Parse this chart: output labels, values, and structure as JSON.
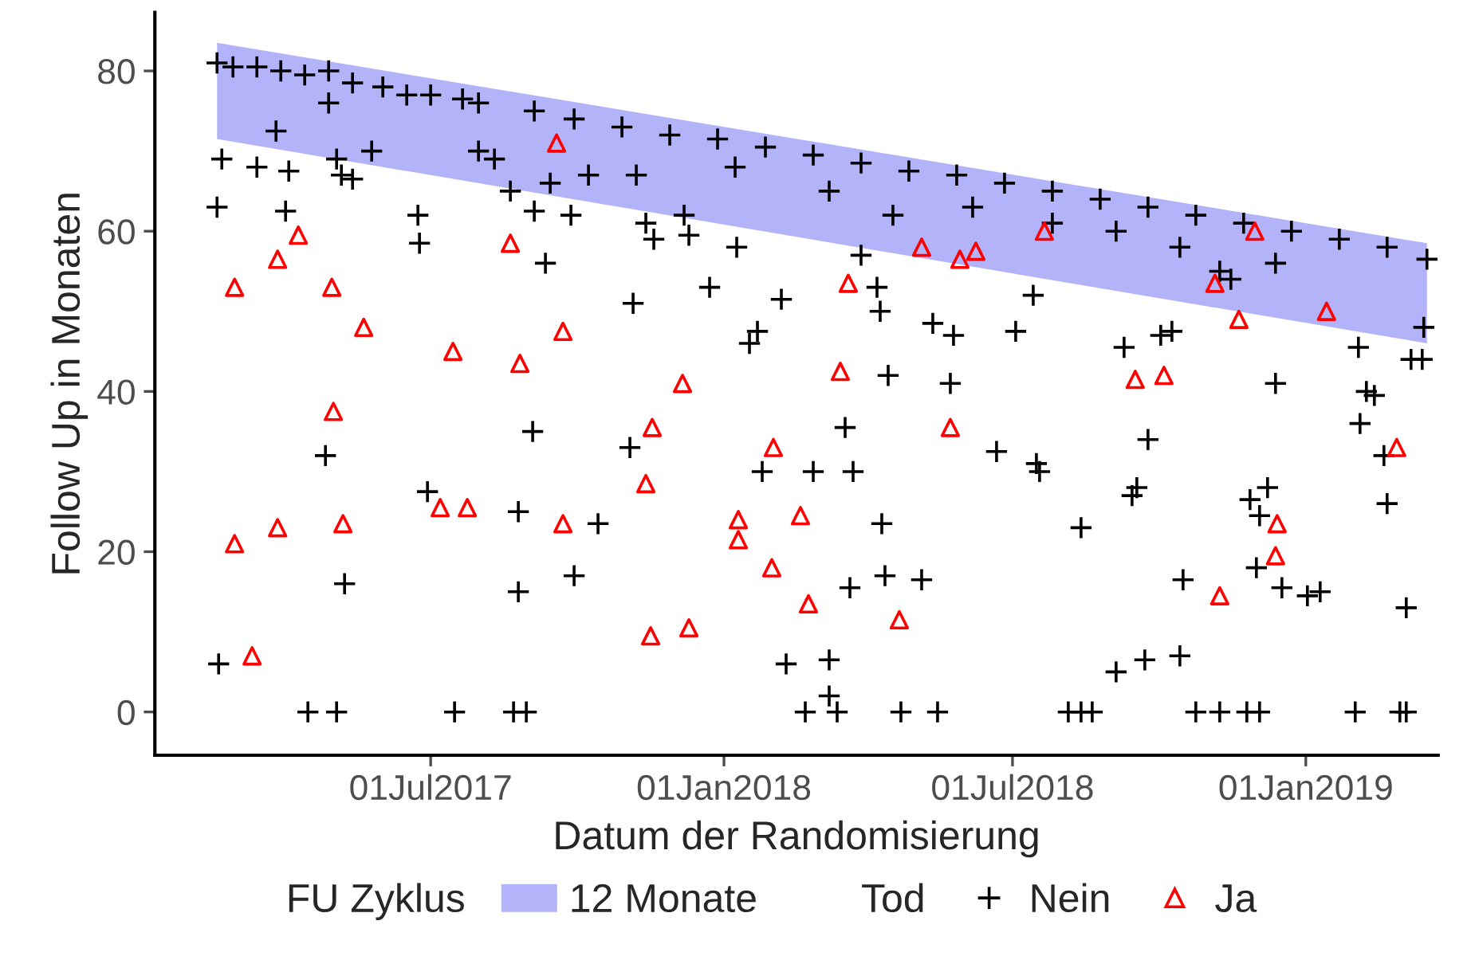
{
  "chart_data": {
    "type": "scatter",
    "xlabel": "Datum der Randomisierung",
    "ylabel": "Follow Up in Monaten",
    "legend_title": [
      "FU Zyklus",
      "Tod"
    ],
    "legend": "bottom",
    "grid": false,
    "xlim": [
      "2017-01-09",
      "2019-03-25"
    ],
    "ylim": [
      -5.4,
      87.3
    ],
    "xticks": [
      {
        "value": "2017-07-01",
        "label": "01Jul2017"
      },
      {
        "value": "2018-01-01",
        "label": "01Jan2018"
      },
      {
        "value": "2018-07-01",
        "label": "01Jul2018"
      },
      {
        "value": "2019-01-01",
        "label": "01Jan2019"
      }
    ],
    "yticks": [
      0,
      20,
      40,
      60,
      80
    ],
    "series": [
      {
        "type": "line",
        "name": "12 Monate",
        "color": "#b3b3fa",
        "x": [
          "2017-02-17",
          "2019-03-18"
        ],
        "values": [
          null,
          null
        ],
        "lower": [
          71.5,
          46
        ],
        "upper": [
          83.5,
          58.5
        ]
      },
      {
        "name": "Nein",
        "color": "#000000",
        "marker": "cross",
        "x": [
          "2017-02-17",
          "2017-02-27",
          "2017-03-14",
          "2017-03-29",
          "2017-04-13",
          "2017-04-28",
          "2017-05-13",
          "2017-06-01",
          "2017-06-16",
          "2017-07-01",
          "2017-07-21",
          "2017-07-31",
          "2017-09-04",
          "2017-09-29",
          "2017-10-29",
          "2017-11-28",
          "2017-12-28",
          "2018-01-27",
          "2018-02-26",
          "2018-03-28",
          "2018-04-27",
          "2018-05-27",
          "2018-06-26",
          "2018-07-26",
          "2018-08-25",
          "2018-09-24",
          "2018-10-24",
          "2018-11-23",
          "2018-12-23",
          "2019-01-22",
          "2019-02-21",
          "2019-03-18",
          "2017-02-20",
          "2017-02-17",
          "2017-02-18",
          "2017-03-14",
          "2017-03-26",
          "2017-04-03",
          "2017-04-01",
          "2017-04-28",
          "2017-05-03",
          "2017-05-06",
          "2017-05-13",
          "2017-04-26",
          "2017-05-08",
          "2017-04-15",
          "2017-05-03",
          "2017-05-25",
          "2017-06-23",
          "2017-06-24",
          "2017-06-29",
          "2017-07-16",
          "2017-08-22",
          "2017-08-30",
          "2017-08-25",
          "2017-08-25",
          "2017-09-04",
          "2017-09-03",
          "2017-09-11",
          "2017-09-14",
          "2017-09-29",
          "2017-10-14",
          "2017-09-27",
          "2017-11-03",
          "2017-11-05",
          "2017-11-13",
          "2017-11-18",
          "2017-12-10",
          "2017-12-23",
          "2018-01-09",
          "2018-01-17",
          "2018-01-22",
          "2018-01-25",
          "2018-02-06",
          "2018-02-09",
          "2018-02-21",
          "2018-02-26",
          "2018-03-08",
          "2018-03-13",
          "2018-03-08",
          "2018-03-18",
          "2018-03-23",
          "2018-03-21",
          "2018-03-28",
          "2018-04-07",
          "2018-04-09",
          "2018-04-10",
          "2018-04-12",
          "2018-04-14",
          "2018-04-22",
          "2018-05-05",
          "2018-05-12",
          "2018-05-15",
          "2018-05-23",
          "2018-05-25",
          "2018-06-21",
          "2018-07-03",
          "2018-07-14",
          "2018-07-16",
          "2018-07-18",
          "2018-08-05",
          "2018-08-13",
          "2018-08-20",
          "2018-08-13",
          "2018-09-04",
          "2018-09-09",
          "2018-09-14",
          "2018-09-17",
          "2018-09-22",
          "2018-09-24",
          "2018-10-02",
          "2018-10-09",
          "2018-10-14",
          "2018-10-24",
          "2018-11-08",
          "2018-10-16",
          "2018-11-08",
          "2018-11-15",
          "2018-11-27",
          "2018-12-03",
          "2018-12-01",
          "2018-12-08",
          "2018-12-13",
          "2018-12-17",
          "2019-01-02",
          "2019-01-10",
          "2018-11-25",
          "2018-12-03",
          "2019-02-01",
          "2019-03-01",
          "2019-03-05",
          "2019-02-04",
          "2019-02-08",
          "2019-02-03",
          "2019-02-13",
          "2019-02-19",
          "2019-02-21",
          "2019-03-05",
          "2019-03-08",
          "2019-03-15",
          "2019-03-16",
          "2017-07-31",
          "2017-08-10",
          "2017-08-20",
          "2017-10-08",
          "2017-11-07",
          "2017-12-07",
          "2018-01-08",
          "2018-03-08",
          "2018-04-17",
          "2018-06-06",
          "2018-07-26",
          "2018-09-04",
          "2018-10-14",
          "2018-12-13"
        ],
        "values": [
          81,
          80.5,
          80.5,
          80,
          79.5,
          80,
          78.5,
          78,
          77,
          77,
          76.5,
          76,
          75,
          74,
          73,
          72,
          71.5,
          70.5,
          69.5,
          68.5,
          67.5,
          67,
          66,
          65,
          64,
          63,
          62,
          61,
          60,
          59,
          58,
          56.5,
          69,
          63,
          6,
          68,
          72.5,
          67.5,
          62.5,
          76,
          69,
          67,
          66.5,
          32,
          16,
          0,
          0,
          70,
          62,
          58.5,
          27.5,
          0,
          0,
          0,
          25,
          15,
          62.5,
          35,
          56,
          66,
          17,
          23.5,
          62,
          33,
          51,
          61,
          59,
          59.5,
          53,
          58,
          46,
          47.5,
          30,
          51.5,
          6,
          0,
          30,
          2,
          0,
          6.5,
          35.5,
          30,
          15.5,
          57,
          53,
          50,
          23.5,
          17,
          42,
          0,
          16.5,
          48.5,
          0,
          41,
          47,
          32.5,
          47.5,
          52,
          31,
          30,
          0,
          0,
          0,
          23,
          5,
          45.5,
          27,
          28,
          6.5,
          34,
          47,
          47.5,
          7,
          0,
          0,
          16.5,
          55,
          54,
          26.5,
          24.5,
          18,
          28,
          41,
          15.5,
          14.5,
          15,
          0,
          0,
          0,
          0,
          0,
          36,
          40,
          45.5,
          39.5,
          32,
          26,
          13,
          44,
          44,
          48,
          70,
          69,
          65,
          67,
          67,
          62,
          68,
          65,
          62,
          63,
          61,
          60,
          58,
          56
        ]
      },
      {
        "name": "Ja",
        "color": "#ff0000",
        "marker": "triangle",
        "x": [
          "2017-02-28",
          "2017-02-28",
          "2017-03-11",
          "2017-03-27",
          "2017-03-27",
          "2017-04-09",
          "2017-04-30",
          "2017-05-01",
          "2017-05-07",
          "2017-05-20",
          "2017-07-07",
          "2017-07-15",
          "2017-07-24",
          "2017-08-20",
          "2017-08-26",
          "2017-09-18",
          "2017-09-22",
          "2017-09-22",
          "2017-11-13",
          "2017-11-17",
          "2017-11-16",
          "2017-12-06",
          "2017-12-10",
          "2018-01-10",
          "2018-01-10",
          "2018-02-01",
          "2018-01-31",
          "2018-02-18",
          "2018-02-23",
          "2018-03-15",
          "2018-03-20",
          "2018-04-21",
          "2018-05-05",
          "2018-05-23",
          "2018-05-29",
          "2018-06-08",
          "2018-07-21",
          "2018-09-16",
          "2018-10-04",
          "2018-11-05",
          "2018-11-08",
          "2018-11-20",
          "2018-11-30",
          "2018-12-14",
          "2018-12-13",
          "2019-01-14",
          "2019-02-27"
        ],
        "values": [
          53,
          21,
          7,
          56.5,
          23,
          59.5,
          53,
          37.5,
          23.5,
          48,
          25.5,
          45,
          25.5,
          58.5,
          43.5,
          71,
          47.5,
          23.5,
          28.5,
          35.5,
          9.5,
          41,
          10.5,
          24,
          21.5,
          33,
          18,
          24.5,
          13.5,
          42.5,
          53.5,
          11.5,
          58,
          35.5,
          56.5,
          57.5,
          60,
          41.5,
          42,
          53.5,
          14.5,
          49,
          60,
          23.5,
          19.5,
          50,
          33
        ]
      }
    ]
  }
}
